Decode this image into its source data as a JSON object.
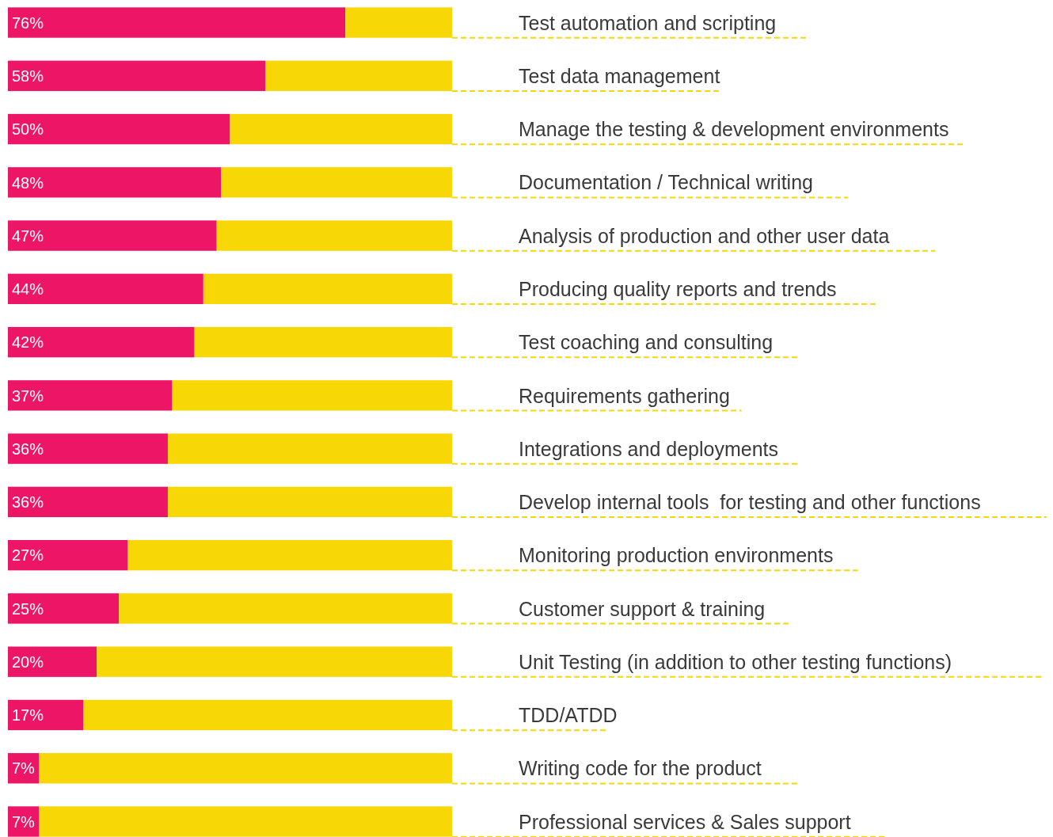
{
  "chart_data": {
    "type": "bar",
    "orientation": "horizontal",
    "stacked": true,
    "xlim": [
      0,
      100
    ],
    "tick_labels": "y",
    "categories": [
      "Test automation and scripting",
      "Test data management",
      "Manage the testing & development environments",
      "Documentation / Technical writing",
      "Analysis of production and other user data",
      "Producing quality reports and trends",
      "Test coaching and consulting",
      "Requirements gathering",
      "Integrations and deployments",
      "Develop internal tools  for testing and other functions",
      "Monitoring production environments",
      "Customer support & training",
      "Unit Testing (in addition to other testing functions)",
      "TDD/ATDD",
      "Writing code for the product",
      "Professional services & Sales support"
    ],
    "series": [
      {
        "color": "#ed1566",
        "values": [
          76,
          58,
          50,
          48,
          47,
          44,
          42,
          37,
          36,
          36,
          27,
          25,
          20,
          17,
          7,
          7
        ],
        "value_labels": [
          "76%",
          "58%",
          "50%",
          "48%",
          "47%",
          "44%",
          "42%",
          "37%",
          "36%",
          "36%",
          "27%",
          "25%",
          "20%",
          "17%",
          "7%",
          "7%"
        ]
      },
      {
        "color": "#f8d707",
        "values": [
          24,
          42,
          50,
          52,
          53,
          56,
          58,
          63,
          64,
          64,
          73,
          75,
          80,
          83,
          93,
          93
        ]
      }
    ]
  }
}
